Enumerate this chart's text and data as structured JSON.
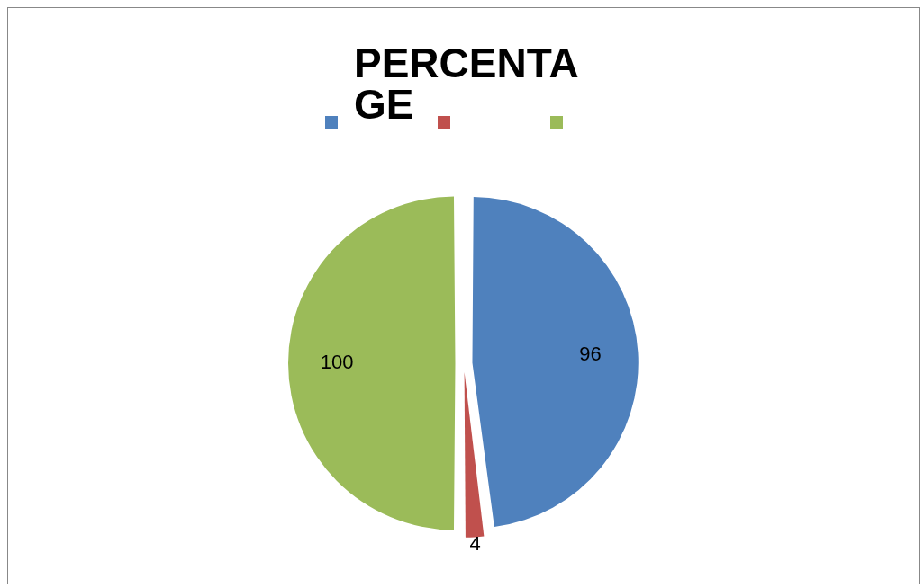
{
  "chart_data": {
    "type": "pie",
    "title": "PERCENTAGE",
    "categories": [
      null,
      null,
      null
    ],
    "values": [
      96,
      4,
      100
    ],
    "colors": [
      "#4f81bd",
      "#c0504d",
      "#9bbb59"
    ],
    "data_labels": true
  }
}
